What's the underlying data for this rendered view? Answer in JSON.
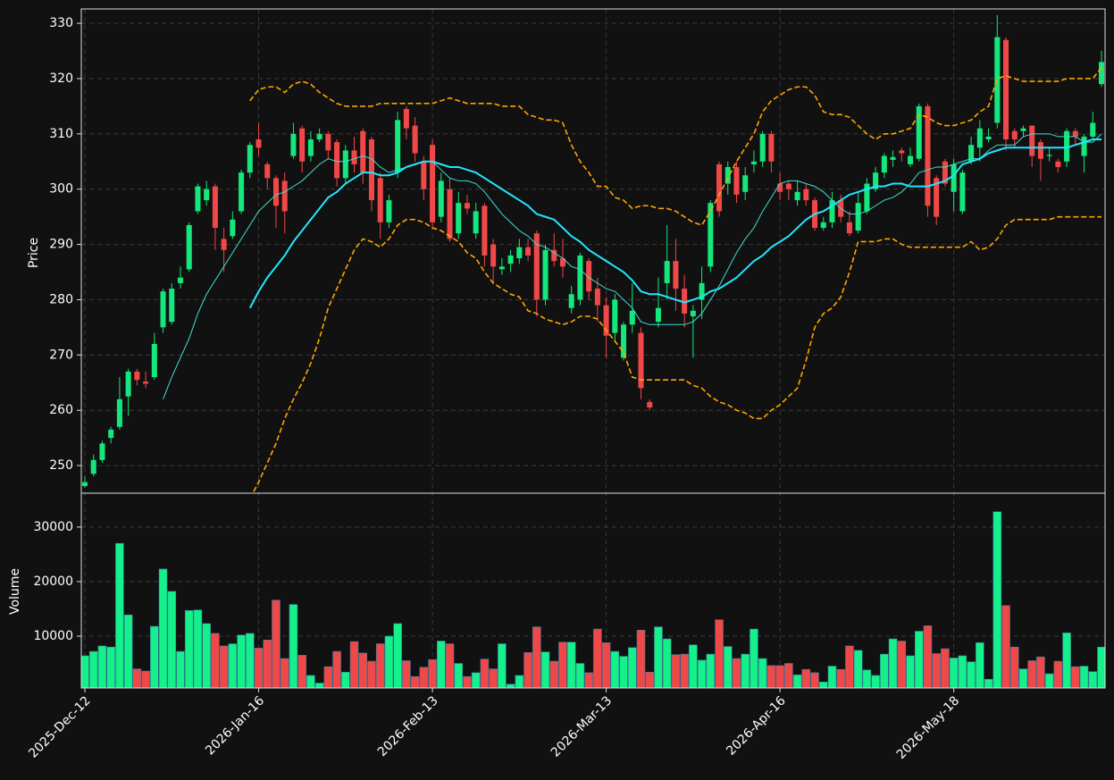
{
  "chart_data": [
    {
      "type": "candlestick",
      "ylabel": "Price",
      "ylim": [
        245,
        332.6
      ],
      "yticks": [
        250,
        260,
        270,
        280,
        290,
        300,
        310,
        320,
        330
      ],
      "grid": true,
      "up_color": "#14e87c",
      "down_color": "#f04848",
      "open": [
        246.3,
        248.5,
        251,
        255,
        257,
        262.5,
        267,
        265.2,
        266,
        275,
        276,
        283,
        285.5,
        296,
        298,
        300.5,
        291,
        291.5,
        296,
        303,
        309,
        304.5,
        302,
        301.5,
        306,
        311,
        306,
        309,
        310,
        308.5,
        302,
        307,
        310.5,
        309,
        302,
        294,
        303,
        314.5,
        311.5,
        305,
        308,
        295,
        300,
        292,
        297.5,
        292,
        297,
        290,
        285.5,
        286.5,
        287.5,
        289.5,
        292,
        280,
        289,
        287.5,
        278.5,
        280,
        287,
        282,
        279,
        274,
        269.5,
        275.5,
        274,
        261.5,
        276,
        283,
        287,
        282,
        277,
        280,
        286,
        304.5,
        301,
        304,
        299.5,
        304.5,
        305,
        310,
        301,
        301,
        298,
        300,
        298,
        293,
        294,
        298,
        294,
        292.5,
        296,
        300,
        303,
        305.3,
        307,
        304.5,
        305.5,
        315,
        302,
        305,
        299.5,
        296,
        305,
        307.5,
        309,
        312,
        327,
        310.5,
        310.5,
        311.5,
        308.5,
        306,
        305,
        305,
        310.5,
        306,
        309.5,
        319
      ],
      "high": [
        248,
        252,
        254.5,
        257,
        266,
        267.5,
        267.5,
        267,
        274,
        282,
        283,
        286,
        294,
        301,
        301.5,
        301,
        293,
        296,
        303.5,
        308.5,
        312,
        305,
        302.5,
        303,
        312,
        311.5,
        310.5,
        311,
        310.5,
        309,
        308,
        309.5,
        311,
        309.5,
        303,
        299,
        314,
        315,
        313,
        306,
        309,
        303,
        302,
        299.5,
        299,
        297.5,
        297.5,
        291,
        287.5,
        289,
        291,
        291,
        292.5,
        290,
        292,
        291,
        282.5,
        288.5,
        287.5,
        284,
        280.5,
        281,
        276,
        283,
        275,
        262,
        284,
        293.5,
        291,
        284.5,
        279,
        286,
        298,
        305,
        305,
        305,
        304,
        307,
        310.5,
        310.5,
        303,
        301.5,
        301.5,
        301,
        298.5,
        295,
        299.5,
        299,
        296,
        299.5,
        302,
        304,
        306.5,
        307,
        307.5,
        307.5,
        315.5,
        315.5,
        302.5,
        305.5,
        305.5,
        303.5,
        309.5,
        312.5,
        311,
        331.5,
        327.5,
        311,
        311.5,
        311.5,
        309,
        307.5,
        305.5,
        311,
        311,
        310,
        314,
        325
      ],
      "low": [
        246,
        248,
        250.5,
        254,
        256.5,
        259,
        264.5,
        264,
        265.5,
        274,
        275.5,
        282,
        285,
        295.5,
        297,
        289,
        285,
        291,
        295.5,
        302,
        306,
        300,
        293,
        292,
        305.5,
        303,
        305,
        308.5,
        305.5,
        300.5,
        301,
        303,
        301,
        296,
        291,
        293,
        302,
        309,
        305,
        298,
        293,
        294,
        290.5,
        291,
        295.5,
        291,
        286,
        283,
        284.5,
        285,
        286.5,
        287,
        277,
        279,
        286,
        284,
        277.5,
        279,
        280,
        276,
        269.5,
        272.5,
        269,
        274,
        262,
        260,
        275,
        280,
        278,
        275,
        269.5,
        276.5,
        285,
        295,
        299,
        297.5,
        298,
        303,
        304,
        303,
        298,
        298,
        297,
        297,
        292.5,
        292.5,
        293,
        294,
        291.5,
        292,
        295.5,
        299.5,
        302,
        304,
        305,
        304,
        305,
        295,
        293.5,
        300.5,
        296,
        295.5,
        304.5,
        305,
        308.5,
        311,
        307,
        307.5,
        309.5,
        304,
        301.5,
        305,
        303,
        304,
        308,
        303,
        309,
        318.5
      ],
      "close": [
        247,
        251,
        254,
        256.5,
        262,
        267,
        265.5,
        264.8,
        272,
        281.5,
        282,
        284,
        293.5,
        300.5,
        300,
        293,
        289,
        294.5,
        303,
        308,
        307.5,
        302,
        297,
        296,
        310,
        305,
        309,
        310,
        307,
        302,
        307,
        304.5,
        303,
        298,
        294,
        298,
        312.5,
        311,
        306.5,
        300,
        294,
        301.5,
        291,
        297.5,
        296.5,
        296,
        288,
        286,
        286,
        288,
        289.5,
        288,
        280,
        289,
        287,
        286,
        281,
        288,
        281.5,
        279,
        273.5,
        280,
        275.5,
        278,
        264,
        260.5,
        278.5,
        287,
        282,
        277.5,
        278,
        283,
        297.5,
        296,
        304,
        299,
        302.5,
        305,
        310,
        305,
        299.5,
        300,
        299.5,
        298,
        293,
        294,
        298,
        295,
        292,
        297.5,
        301,
        303,
        306,
        305.8,
        306.5,
        306,
        315,
        297,
        295,
        301,
        304.5,
        303,
        308,
        311,
        309.5,
        327.5,
        309,
        309,
        311,
        306,
        305.5,
        306.2,
        304,
        310.5,
        309.5,
        309.5,
        312,
        323
      ],
      "overlays": [
        {
          "color": "#40e0d0",
          "linewidth": 1,
          "linestyle": "solid",
          "values": [
            null,
            null,
            null,
            null,
            null,
            null,
            null,
            null,
            null,
            262,
            266,
            269.5,
            273,
            277.5,
            281,
            283.5,
            286,
            288.5,
            291,
            293.5,
            296,
            297.5,
            299,
            299.5,
            300.5,
            301.5,
            303,
            304.5,
            305.5,
            305,
            305,
            305.5,
            306,
            305.5,
            304,
            303,
            303.5,
            304,
            304.5,
            305,
            305,
            303.5,
            302,
            301.5,
            301.5,
            301,
            299.5,
            297.5,
            295.5,
            294,
            292.5,
            291.5,
            290,
            289.5,
            288.5,
            287.5,
            286,
            285.5,
            284,
            283,
            282,
            281.5,
            280,
            278.5,
            276,
            275.5,
            275.5,
            275.5,
            275.5,
            275.5,
            276,
            277.5,
            280,
            282.5,
            285.5,
            288.5,
            291,
            293,
            296,
            298.5,
            301,
            301.5,
            301.5,
            301,
            300.5,
            299.5,
            298,
            296.5,
            295.5,
            295.5,
            296,
            297,
            298,
            298.5,
            299.5,
            301,
            303,
            303.5,
            304,
            304,
            304.5,
            305,
            305.5,
            305.5,
            307,
            308,
            308,
            308,
            309.5,
            310,
            310,
            310,
            309.5,
            309.5,
            309.5,
            308.5,
            308.5,
            310
          ]
        },
        {
          "color": "#22e6ff",
          "linewidth": 2,
          "linestyle": "solid",
          "values": [
            null,
            null,
            null,
            null,
            null,
            null,
            null,
            null,
            null,
            null,
            null,
            null,
            null,
            null,
            null,
            null,
            null,
            null,
            null,
            278.5,
            281.5,
            284,
            286,
            288,
            290.5,
            292.5,
            294.5,
            296.5,
            298.5,
            299.5,
            301,
            302,
            303,
            303,
            302.5,
            302.5,
            303,
            304,
            304.5,
            305,
            305,
            304.5,
            304,
            304,
            303.5,
            303,
            302,
            301,
            300,
            299,
            298,
            297,
            295.5,
            295,
            294.5,
            293,
            291.5,
            290.5,
            289,
            288,
            287,
            286,
            285,
            283.5,
            281.5,
            281,
            281,
            280.5,
            280,
            279.5,
            280,
            280.5,
            281.5,
            282,
            283,
            284,
            285.5,
            287,
            288,
            289.5,
            290.5,
            291.5,
            293,
            294.5,
            295.5,
            296,
            297,
            298,
            299,
            299.5,
            300,
            300.5,
            300.5,
            301,
            301,
            300.5,
            300.5,
            300.5,
            301,
            301.5,
            302.5,
            304.5,
            305,
            305.5,
            306.5,
            307,
            307.5,
            307.5,
            307.5,
            307.5,
            307.5,
            307.5,
            307.5,
            307.5,
            308,
            308.5,
            309,
            309
          ]
        },
        {
          "color": "#ffa500",
          "linewidth": 1.6,
          "linestyle": "dashed",
          "values": [
            null,
            null,
            null,
            null,
            null,
            null,
            null,
            null,
            null,
            null,
            null,
            null,
            null,
            null,
            null,
            null,
            null,
            null,
            null,
            316,
            318,
            318.5,
            318.5,
            317.5,
            319,
            319.5,
            319,
            317.5,
            316.5,
            315.5,
            315,
            315,
            315,
            315,
            315.5,
            315.5,
            315.5,
            315.5,
            315.5,
            315.5,
            315.5,
            316,
            316.5,
            316,
            315.5,
            315.5,
            315.5,
            315.5,
            315,
            315,
            315,
            313.5,
            313,
            312.5,
            312.5,
            312,
            308,
            305,
            303,
            300.5,
            300.5,
            298.5,
            298,
            296.5,
            297,
            297,
            296.5,
            296.5,
            296,
            295,
            294,
            293.5,
            296,
            299,
            302,
            305,
            307.5,
            310,
            314,
            316,
            317,
            318,
            318.5,
            318.5,
            317,
            314,
            313.5,
            313.5,
            313,
            311.5,
            310,
            309,
            310,
            310,
            310.5,
            311,
            313.5,
            313,
            312,
            311.5,
            311.5,
            312,
            312.5,
            314,
            315,
            320,
            320.5,
            320,
            319.5,
            319.5,
            319.5,
            319.5,
            319.5,
            320,
            320,
            320,
            320,
            322
          ]
        },
        {
          "color": "#ffa500",
          "linewidth": 1.6,
          "linestyle": "dashed",
          "values": [
            null,
            null,
            null,
            null,
            null,
            null,
            null,
            null,
            null,
            null,
            null,
            null,
            null,
            null,
            null,
            null,
            null,
            null,
            null,
            244,
            247,
            250.5,
            254,
            258.5,
            262,
            265,
            268.5,
            273,
            278.5,
            282,
            285.5,
            289,
            291,
            290.5,
            289.5,
            291,
            293.5,
            294.5,
            294.5,
            294,
            293,
            292.5,
            291.5,
            290.5,
            288.5,
            287.5,
            285,
            283,
            282,
            281,
            280.5,
            278,
            277.5,
            276.5,
            276,
            275.5,
            276,
            277,
            277,
            276.5,
            274.5,
            272.5,
            270.5,
            266,
            265.5,
            265.5,
            265.5,
            265.5,
            265.5,
            265.5,
            264.5,
            264,
            262.5,
            261.5,
            261,
            260,
            259.5,
            258.5,
            258.5,
            260,
            261,
            262.5,
            264,
            269,
            275,
            277.5,
            278.5,
            280.5,
            285,
            290.5,
            290.5,
            290.5,
            291,
            291,
            290,
            289.5,
            289.5,
            289.5,
            289.5,
            289.5,
            289.5,
            289.5,
            290.5,
            289,
            289.5,
            291,
            293.5,
            294.5,
            294.5,
            294.5,
            294.5,
            294.5,
            295,
            295,
            295,
            295,
            295,
            295
          ]
        }
      ]
    },
    {
      "type": "volume",
      "ylabel": "Volume",
      "ylim": [
        500,
        36200
      ],
      "yticks": [
        10000,
        20000,
        30000
      ],
      "grid": true,
      "up_color": "#14f08a",
      "down_color": "#f04848",
      "categories": [
        "2025-Dec-12",
        null,
        null,
        null,
        null,
        null,
        null,
        null,
        null,
        null,
        null,
        null,
        null,
        null,
        null,
        null,
        null,
        null,
        null,
        null,
        "2026-Jan-16",
        null,
        null,
        null,
        null,
        null,
        null,
        null,
        null,
        null,
        null,
        null,
        null,
        null,
        null,
        null,
        null,
        null,
        null,
        null,
        "2026-Feb-13",
        null,
        null,
        null,
        null,
        null,
        null,
        null,
        null,
        null,
        null,
        null,
        null,
        null,
        null,
        null,
        null,
        null,
        null,
        null,
        "2026-Mar-13",
        null,
        null,
        null,
        null,
        null,
        null,
        null,
        null,
        null,
        null,
        null,
        null,
        null,
        null,
        null,
        null,
        null,
        null,
        null,
        "2026-Apr-16",
        null,
        null,
        null,
        null,
        null,
        null,
        null,
        null,
        null,
        null,
        null,
        null,
        null,
        null,
        null,
        null,
        null,
        null,
        null,
        "2026-May-18",
        null,
        null,
        null,
        null,
        null,
        null,
        null,
        null,
        null,
        null,
        null,
        null,
        null,
        null,
        null,
        null,
        null
      ],
      "values": [
        6400,
        7200,
        8200,
        8000,
        27000,
        13900,
        4000,
        3600,
        11800,
        22300,
        18200,
        7200,
        14700,
        14800,
        12300,
        10500,
        8200,
        8600,
        10200,
        10500,
        7800,
        9300,
        16600,
        5900,
        15800,
        6500,
        2800,
        1400,
        4400,
        7200,
        3400,
        9000,
        6900,
        5400,
        8600,
        10000,
        12300,
        5500,
        2600,
        4300,
        5700,
        9100,
        8600,
        5000,
        2600,
        3300,
        5800,
        4000,
        8600,
        1200,
        2800,
        7000,
        11700,
        7100,
        5400,
        8900,
        8900,
        5000,
        3300,
        11300,
        8800,
        7200,
        6300,
        7900,
        11100,
        3400,
        11700,
        9500,
        6600,
        6700,
        8400,
        5600,
        6700,
        13000,
        8100,
        5900,
        6700,
        11300,
        5900,
        4600,
        4600,
        5000,
        2900,
        3900,
        3300,
        1600,
        4500,
        3900,
        8200,
        7400,
        3800,
        2800,
        6700,
        9500,
        9100,
        6400,
        10900,
        11900,
        6800,
        7700,
        6000,
        6400,
        5300,
        8800,
        2100,
        32800,
        15600,
        8000,
        4000,
        5500,
        6200,
        3100,
        5400,
        10600,
        4400,
        4500,
        3500,
        8000
      ]
    }
  ]
}
